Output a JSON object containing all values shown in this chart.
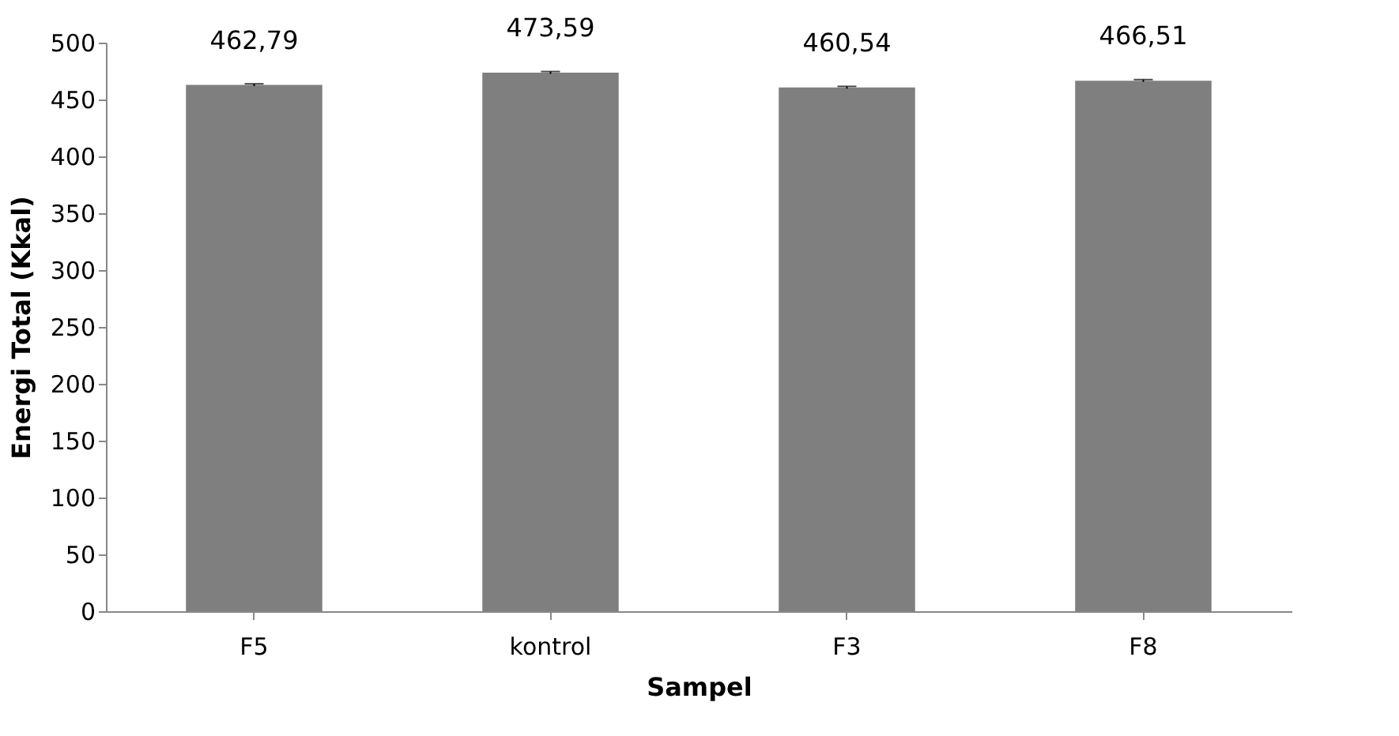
{
  "chart_data": {
    "type": "bar",
    "xlabel": "Sampel",
    "ylabel": "Energi Total (Kkal)",
    "categories": [
      "F5",
      "kontrol",
      "F3",
      "F8"
    ],
    "values": [
      462.79,
      473.59,
      460.54,
      466.51
    ],
    "errors": [
      1,
      1,
      1,
      1
    ],
    "value_labels": [
      "462,79",
      "473,59",
      "460,54",
      "466,51"
    ],
    "color": "#7f7f7f",
    "ylim": [
      0,
      500
    ],
    "yticks": [
      0,
      50,
      100,
      150,
      200,
      250,
      300,
      350,
      400,
      450,
      500
    ],
    "grid": false
  }
}
